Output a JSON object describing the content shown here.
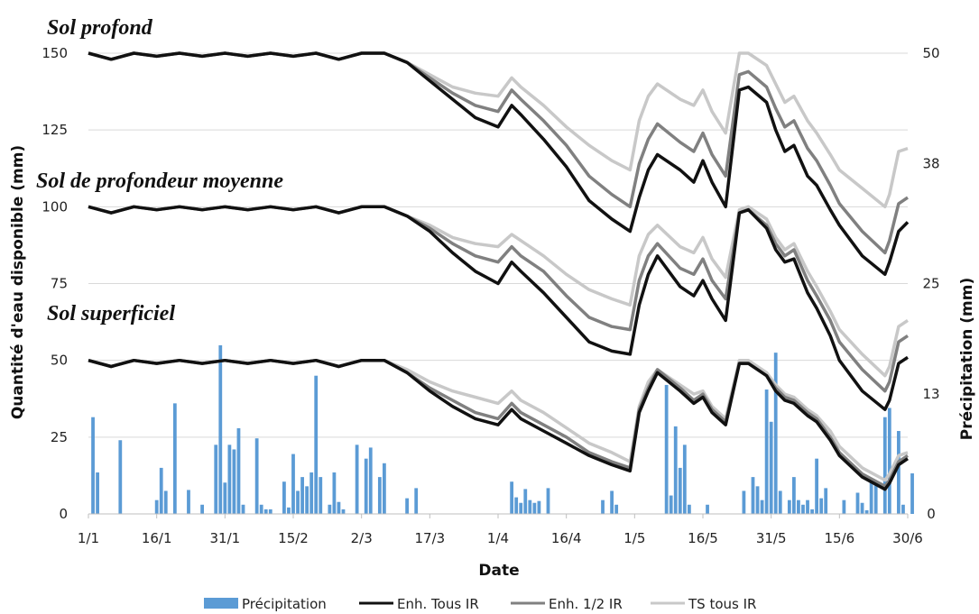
{
  "chart_data": {
    "type": "line",
    "panel_titles": [
      "Sol profond",
      "Sol de profondeur moyenne",
      "Sol superficiel"
    ],
    "xlabel": "Date",
    "ylabel": "Quantité d'eau disponible (mm)",
    "y2label": "Précipitation (mm)",
    "x_ticks": [
      "1/1",
      "16/1",
      "31/1",
      "15/2",
      "2/3",
      "17/3",
      "1/4",
      "16/4",
      "1/5",
      "16/5",
      "31/5",
      "15/6",
      "30/6"
    ],
    "y_ticks": [
      "0",
      "25",
      "50",
      "75",
      "100",
      "125",
      "150"
    ],
    "y2_ticks": [
      "0",
      "13",
      "25",
      "38",
      "50"
    ],
    "ylim": [
      0,
      150
    ],
    "y2lim": [
      0,
      50
    ],
    "x_day_range": [
      0,
      180
    ],
    "legend": [
      "Précipitation",
      "Enh. Tous IR",
      "Enh. 1/2 IR",
      "TS tous IR"
    ],
    "colors": {
      "precip": "#5b9bd5",
      "enh_tous": "#111111",
      "enh_half": "#808080",
      "ts_tous": "#c8c8c8",
      "grid": "#d9d9d9"
    },
    "precipitation": {
      "days": [
        1,
        2,
        7,
        15,
        16,
        17,
        19,
        22,
        25,
        28,
        29,
        30,
        31,
        32,
        33,
        34,
        37,
        38,
        39,
        40,
        43,
        44,
        45,
        46,
        47,
        48,
        49,
        50,
        51,
        53,
        54,
        55,
        56,
        59,
        61,
        62,
        64,
        65,
        70,
        72,
        93,
        94,
        95,
        96,
        97,
        98,
        99,
        101,
        113,
        115,
        116,
        127,
        128,
        129,
        130,
        131,
        132,
        136,
        144,
        146,
        147,
        148,
        149,
        150,
        151,
        152,
        154,
        155,
        156,
        157,
        158,
        159,
        160,
        161,
        162,
        166,
        169,
        170,
        171,
        172,
        173,
        175,
        176,
        178,
        179,
        181
      ],
      "values": [
        10.5,
        4.5,
        8,
        1.5,
        5,
        2.5,
        12,
        2.6,
        1,
        7.5,
        18.3,
        3.4,
        7.5,
        7,
        9.3,
        1,
        8.2,
        1,
        0.5,
        0.5,
        3.5,
        0.7,
        6.5,
        2.5,
        4,
        3,
        4.5,
        15,
        4,
        1,
        4.5,
        1.3,
        0.5,
        7.5,
        6,
        7.2,
        4,
        5.5,
        1.7,
        2.8,
        3.5,
        1.8,
        1.2,
        2.7,
        1.5,
        1.2,
        1.4,
        2.8,
        1.5,
        2.5,
        1,
        14,
        2,
        9.5,
        5,
        7.5,
        1,
        1,
        2.5,
        4,
        3,
        1.5,
        13.5,
        10,
        17.5,
        2.5,
        1.5,
        4,
        1.5,
        1,
        1.5,
        0.5,
        6,
        1.7,
        2.8,
        1.5,
        2.3,
        1.2,
        0.4,
        3.5,
        3.2,
        10.5,
        11.5,
        9,
        1,
        4.4
      ]
    },
    "series": {
      "days": [
        0,
        5,
        10,
        15,
        20,
        25,
        30,
        35,
        40,
        45,
        50,
        55,
        60,
        65,
        70,
        75,
        80,
        85,
        90,
        93,
        95,
        100,
        105,
        110,
        115,
        119,
        121,
        123,
        125,
        130,
        133,
        135,
        137,
        140,
        143,
        145,
        149,
        151,
        153,
        155,
        158,
        160,
        163,
        165,
        170,
        175,
        176,
        178,
        180
      ],
      "sol_profond": [
        {
          "name": "Enh. Tous IR",
          "values": [
            150,
            148,
            150,
            149,
            150,
            149,
            150,
            149,
            150,
            149,
            150,
            148,
            150,
            150,
            147,
            141,
            135,
            129,
            126,
            133,
            130,
            122,
            113,
            102,
            96,
            92,
            103,
            112,
            117,
            112,
            108,
            115,
            108,
            100,
            138,
            139,
            134,
            125,
            118,
            120,
            110,
            107,
            99,
            94,
            84,
            78,
            82,
            92,
            95
          ]
        },
        {
          "name": "Enh. 1/2 IR",
          "values": [
            150,
            148,
            150,
            149,
            150,
            149,
            150,
            149,
            150,
            149,
            150,
            148,
            150,
            150,
            147,
            142,
            137,
            133,
            131,
            138,
            135,
            128,
            120,
            110,
            104,
            100,
            114,
            122,
            127,
            121,
            118,
            124,
            117,
            110,
            143,
            144,
            139,
            132,
            126,
            128,
            119,
            115,
            107,
            101,
            92,
            85,
            89,
            101,
            103
          ]
        },
        {
          "name": "TS tous IR",
          "values": [
            150,
            148,
            150,
            149,
            150,
            149,
            150,
            149,
            150,
            149,
            150,
            148,
            150,
            150,
            147,
            143,
            139,
            137,
            136,
            142,
            139,
            133,
            126,
            120,
            115,
            112,
            128,
            136,
            140,
            135,
            133,
            138,
            131,
            124,
            150,
            150,
            146,
            140,
            134,
            136,
            128,
            124,
            117,
            112,
            106,
            100,
            104,
            118,
            119
          ]
        }
      ],
      "sol_moyen": [
        {
          "name": "Enh. Tous IR",
          "values": [
            100,
            98,
            100,
            99,
            100,
            99,
            100,
            99,
            100,
            99,
            100,
            98,
            100,
            100,
            97,
            92,
            85,
            79,
            75,
            82,
            79,
            72,
            64,
            56,
            53,
            52,
            68,
            78,
            84,
            74,
            71,
            76,
            70,
            63,
            98,
            99,
            93,
            86,
            82,
            83,
            72,
            67,
            58,
            50,
            40,
            34,
            37,
            49,
            51
          ]
        },
        {
          "name": "Enh. 1/2 IR",
          "values": [
            100,
            98,
            100,
            99,
            100,
            99,
            100,
            99,
            100,
            99,
            100,
            98,
            100,
            100,
            97,
            93,
            88,
            84,
            82,
            87,
            84,
            79,
            71,
            64,
            61,
            60,
            76,
            84,
            88,
            80,
            78,
            83,
            76,
            70,
            98,
            99,
            94,
            88,
            84,
            86,
            76,
            71,
            63,
            56,
            47,
            40,
            43,
            56,
            58
          ]
        },
        {
          "name": "TS tous IR",
          "values": [
            100,
            98,
            100,
            99,
            100,
            99,
            100,
            99,
            100,
            99,
            100,
            98,
            100,
            100,
            97,
            94,
            90,
            88,
            87,
            91,
            89,
            84,
            78,
            73,
            70,
            68,
            84,
            91,
            94,
            87,
            85,
            90,
            83,
            77,
            99,
            100,
            96,
            90,
            86,
            88,
            79,
            74,
            66,
            60,
            52,
            45,
            48,
            61,
            63
          ]
        }
      ],
      "sol_superficiel": [
        {
          "name": "Enh. Tous IR",
          "values": [
            50,
            48,
            50,
            49,
            50,
            49,
            50,
            49,
            50,
            49,
            50,
            48,
            50,
            50,
            46,
            40,
            35,
            31,
            29,
            34,
            31,
            27,
            23,
            19,
            16,
            14,
            33,
            40,
            46,
            40,
            36,
            38,
            33,
            29,
            49,
            49,
            45,
            40,
            37,
            36,
            32,
            30,
            24,
            19,
            12,
            8,
            10,
            16,
            18
          ]
        },
        {
          "name": "Enh. 1/2 IR",
          "values": [
            50,
            48,
            50,
            49,
            50,
            49,
            50,
            49,
            50,
            49,
            50,
            48,
            50,
            50,
            46,
            41,
            37,
            33,
            31,
            36,
            33,
            29,
            25,
            20,
            17,
            15,
            34,
            41,
            47,
            41,
            37,
            39,
            34,
            30,
            49,
            49,
            45,
            41,
            38,
            37,
            33,
            31,
            25,
            20,
            13,
            9,
            11,
            17,
            19
          ]
        },
        {
          "name": "TS tous IR",
          "values": [
            50,
            48,
            50,
            49,
            50,
            49,
            50,
            49,
            50,
            49,
            50,
            48,
            50,
            50,
            47,
            43,
            40,
            38,
            36,
            40,
            37,
            33,
            28,
            23,
            20,
            17,
            35,
            43,
            47,
            42,
            39,
            40,
            35,
            31,
            50,
            50,
            46,
            42,
            39,
            38,
            34,
            32,
            27,
            22,
            15,
            11,
            13,
            19,
            20
          ]
        }
      ]
    }
  }
}
